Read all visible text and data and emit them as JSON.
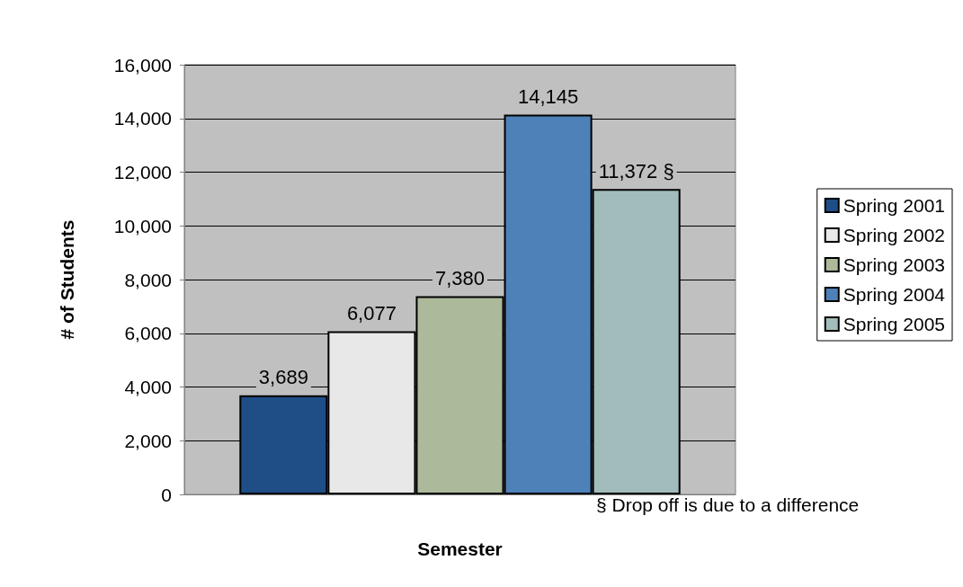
{
  "chart_data": {
    "type": "bar",
    "xlabel": "Semester",
    "ylabel": "# of Students",
    "categories": [
      null
    ],
    "series": [
      {
        "name": "Spring 2001",
        "color": "#1f4e87",
        "values": [
          3689
        ],
        "value_labels": [
          "3,689"
        ]
      },
      {
        "name": "Spring 2002",
        "color": "#e8e8e8",
        "values": [
          6077
        ],
        "value_labels": [
          "6,077"
        ]
      },
      {
        "name": "Spring 2003",
        "color": "#acb99a",
        "values": [
          7380
        ],
        "value_labels": [
          "7,380"
        ]
      },
      {
        "name": "Spring 2004",
        "color": "#4f81b9",
        "values": [
          14145
        ],
        "value_labels": [
          "14,145"
        ]
      },
      {
        "name": "Spring 2005",
        "color": "#a2bcbc",
        "values": [
          11372
        ],
        "value_labels": [
          "11,372 §"
        ]
      }
    ],
    "ylim": [
      0,
      16000
    ],
    "yticks": [
      0,
      {
        "value": 2000,
        "label": "2,000"
      },
      {
        "value": 4000,
        "label": "4,000"
      },
      {
        "value": 6000,
        "label": "6,000"
      },
      {
        "value": 8000,
        "label": "8,000"
      },
      {
        "value": 10000,
        "label": "10,000"
      },
      {
        "value": 12000,
        "label": "12,000"
      },
      {
        "value": 14000,
        "label": "14,000"
      },
      {
        "value": 16000,
        "label": "16,000"
      }
    ],
    "grid": "y",
    "legend": "right",
    "annotations": [
      "§ Drop off is due to a difference"
    ]
  }
}
